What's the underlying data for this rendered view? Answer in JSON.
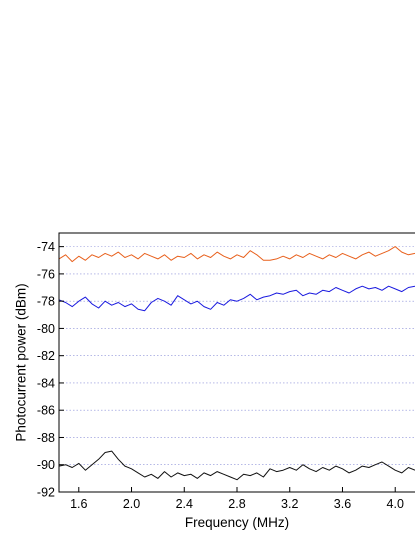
{
  "chart_data": {
    "type": "line",
    "title": "",
    "xlabel": "Frequency (MHz)",
    "ylabel": "Photocurrent power (dBm)",
    "xlim": [
      1.45,
      4.15
    ],
    "ylim": [
      -92,
      -73
    ],
    "xticks": [
      1.6,
      2.0,
      2.4,
      2.8,
      3.2,
      3.6,
      4.0
    ],
    "xtick_labels": [
      "1.6",
      "2.0",
      "2.4",
      "2.8",
      "3.2",
      "3.6",
      "4.0"
    ],
    "yticks": [
      -92,
      -90,
      -88,
      -86,
      -84,
      -82,
      -80,
      -78,
      -76,
      -74
    ],
    "ytick_labels": [
      "-92",
      "-90",
      "-88",
      "-86",
      "-84",
      "-82",
      "-80",
      "-78",
      "-76",
      "-74"
    ],
    "grid": "horizontal dotted",
    "x": [
      1.45,
      1.5,
      1.55,
      1.6,
      1.65,
      1.7,
      1.75,
      1.8,
      1.85,
      1.9,
      1.95,
      2.0,
      2.05,
      2.1,
      2.15,
      2.2,
      2.25,
      2.3,
      2.35,
      2.4,
      2.45,
      2.5,
      2.55,
      2.6,
      2.65,
      2.7,
      2.75,
      2.8,
      2.85,
      2.9,
      2.95,
      3.0,
      3.05,
      3.1,
      3.15,
      3.2,
      3.25,
      3.3,
      3.35,
      3.4,
      3.45,
      3.5,
      3.55,
      3.6,
      3.65,
      3.7,
      3.75,
      3.8,
      3.85,
      3.9,
      3.95,
      4.0,
      4.05,
      4.1,
      4.15
    ],
    "series": [
      {
        "color": "#e8601c",
        "values": [
          -74.9,
          -74.6,
          -75.1,
          -74.7,
          -75.0,
          -74.6,
          -74.8,
          -74.5,
          -74.7,
          -74.4,
          -74.8,
          -74.6,
          -74.9,
          -74.5,
          -74.7,
          -74.9,
          -74.6,
          -75.0,
          -74.7,
          -74.8,
          -74.5,
          -74.9,
          -74.6,
          -74.8,
          -74.4,
          -74.7,
          -74.9,
          -74.6,
          -74.8,
          -74.3,
          -74.6,
          -75.0,
          -75.0,
          -74.9,
          -74.7,
          -74.9,
          -74.6,
          -74.8,
          -74.5,
          -74.7,
          -74.9,
          -74.6,
          -74.8,
          -74.5,
          -74.7,
          -74.9,
          -74.6,
          -74.4,
          -74.7,
          -74.5,
          -74.3,
          -74.0,
          -74.4,
          -74.6,
          -74.5
        ]
      },
      {
        "color": "#1a1adf",
        "values": [
          -77.9,
          -78.1,
          -78.4,
          -78.0,
          -77.7,
          -78.2,
          -78.5,
          -78.0,
          -78.3,
          -78.1,
          -78.4,
          -78.2,
          -78.6,
          -78.7,
          -78.1,
          -77.8,
          -78.0,
          -78.3,
          -77.6,
          -77.9,
          -78.2,
          -78.0,
          -78.4,
          -78.6,
          -78.1,
          -78.3,
          -77.9,
          -78.0,
          -77.8,
          -77.5,
          -77.9,
          -77.7,
          -77.6,
          -77.4,
          -77.5,
          -77.3,
          -77.2,
          -77.6,
          -77.4,
          -77.5,
          -77.2,
          -77.3,
          -77.0,
          -77.2,
          -77.4,
          -77.1,
          -76.9,
          -77.1,
          -77.0,
          -77.2,
          -76.9,
          -77.1,
          -77.3,
          -77.0,
          -76.9
        ]
      },
      {
        "color": "#111111",
        "values": [
          -90.1,
          -90.0,
          -90.2,
          -89.9,
          -90.4,
          -90.0,
          -89.6,
          -89.1,
          -89.0,
          -89.6,
          -90.1,
          -90.3,
          -90.6,
          -90.9,
          -90.7,
          -91.0,
          -90.5,
          -90.9,
          -90.6,
          -90.8,
          -90.7,
          -91.0,
          -90.6,
          -90.8,
          -90.5,
          -90.7,
          -90.9,
          -91.1,
          -90.7,
          -90.8,
          -90.6,
          -90.9,
          -90.3,
          -90.5,
          -90.4,
          -90.2,
          -90.4,
          -90.0,
          -90.3,
          -90.5,
          -90.2,
          -90.4,
          -90.1,
          -90.3,
          -90.6,
          -90.4,
          -90.1,
          -90.2,
          -90.0,
          -89.8,
          -90.1,
          -90.4,
          -90.6,
          -90.2,
          -90.4
        ]
      }
    ]
  }
}
